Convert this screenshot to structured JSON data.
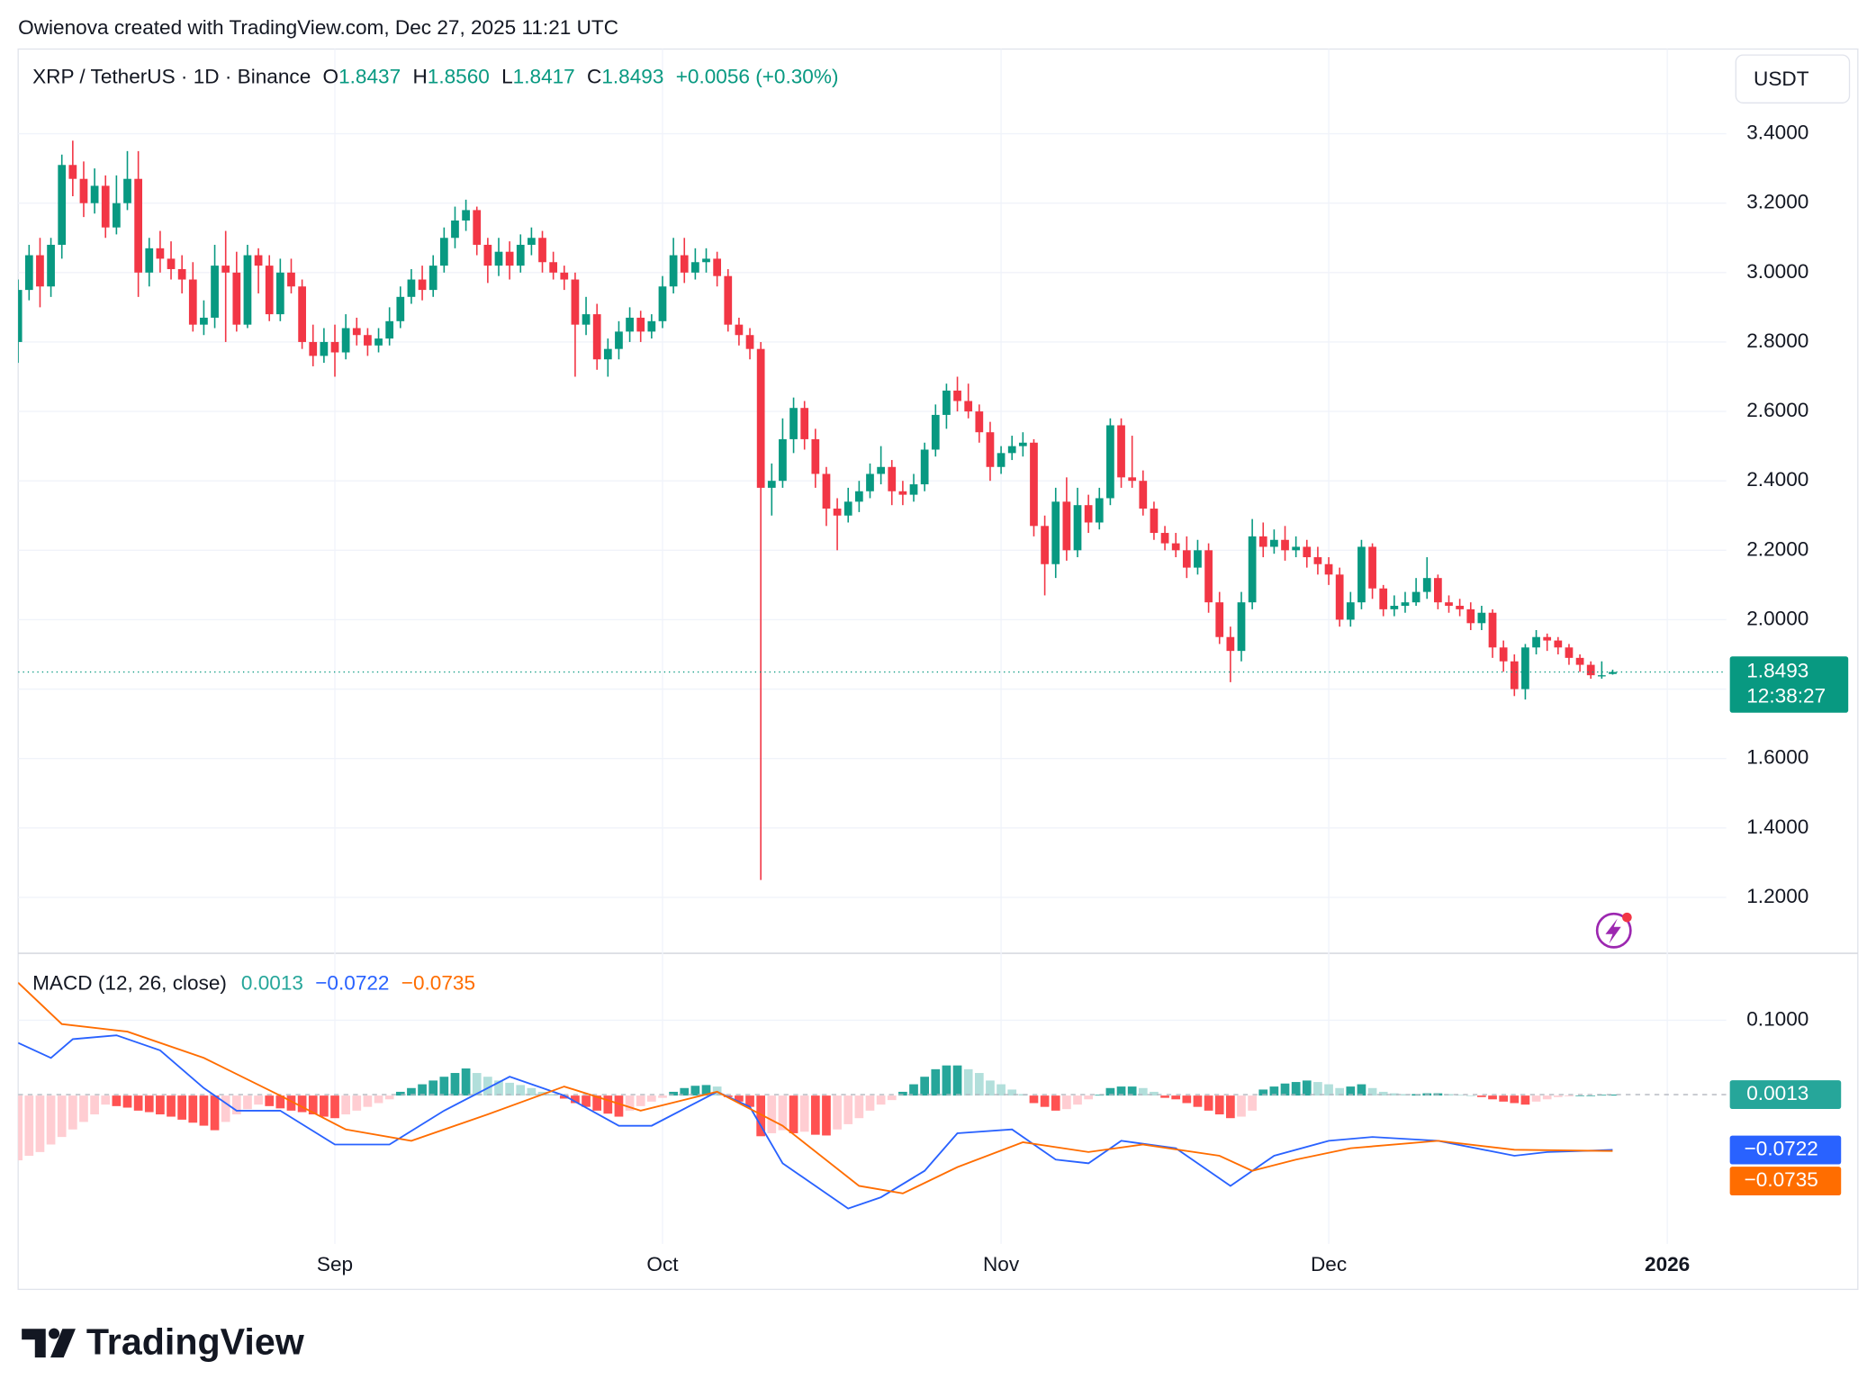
{
  "attribution": "Owienova created with TradingView.com, Dec 27, 2025 11:21 UTC",
  "logo": "TradingView",
  "chart_data": [
    {
      "type": "candlestick",
      "title": "XRP / TetherUS · 1D · Binance",
      "header": [
        {
          "label": "O",
          "value": "1.8437"
        },
        {
          "label": "H",
          "value": "1.8560"
        },
        {
          "label": "L",
          "value": "1.8417"
        },
        {
          "label": "C",
          "value": "1.8493"
        }
      ],
      "change": "+0.0056 (+0.30%)",
      "currency": "USDT",
      "colors": {
        "up": "#089981",
        "down": "#f23645"
      },
      "last_price": 1.8493,
      "countdown": "12:38:27",
      "grid": true,
      "xlim": [
        0,
        156.4
      ],
      "xticks": [
        {
          "value": 29,
          "label": "Sep"
        },
        {
          "value": 59,
          "label": "Oct"
        },
        {
          "value": 90,
          "label": "Nov"
        },
        {
          "value": 120,
          "label": "Dec"
        },
        {
          "value": 151,
          "label": "2026"
        }
      ],
      "ylim": [
        1.039,
        3.644
      ],
      "yticks": [
        {
          "value": 1.2,
          "label": "1.2000"
        },
        {
          "value": 1.4,
          "label": "1.4000"
        },
        {
          "value": 1.6,
          "label": "1.6000"
        },
        {
          "value": 1.8,
          "label": "1.8000"
        },
        {
          "value": 2.0,
          "label": "2.0000"
        },
        {
          "value": 2.2,
          "label": "2.2000"
        },
        {
          "value": 2.4,
          "label": "2.4000"
        },
        {
          "value": 2.6,
          "label": "2.6000"
        },
        {
          "value": 2.8,
          "label": "2.8000"
        },
        {
          "value": 3.0,
          "label": "3.0000"
        },
        {
          "value": 3.2,
          "label": "3.2000"
        },
        {
          "value": 3.4,
          "label": "3.4000"
        }
      ],
      "ohlc": [
        [
          2.8,
          2.98,
          2.74,
          2.95
        ],
        [
          2.95,
          3.08,
          2.92,
          3.05
        ],
        [
          3.05,
          3.1,
          2.9,
          2.96
        ],
        [
          2.96,
          3.1,
          2.93,
          3.08
        ],
        [
          3.08,
          3.34,
          3.04,
          3.31
        ],
        [
          3.31,
          3.38,
          3.22,
          3.27
        ],
        [
          3.27,
          3.32,
          3.16,
          3.2
        ],
        [
          3.2,
          3.3,
          3.17,
          3.25
        ],
        [
          3.25,
          3.28,
          3.1,
          3.13
        ],
        [
          3.13,
          3.28,
          3.11,
          3.2
        ],
        [
          3.2,
          3.35,
          3.18,
          3.27
        ],
        [
          3.27,
          3.35,
          2.93,
          3.0
        ],
        [
          3.0,
          3.1,
          2.96,
          3.07
        ],
        [
          3.07,
          3.12,
          3.0,
          3.04
        ],
        [
          3.04,
          3.09,
          2.98,
          3.01
        ],
        [
          3.01,
          3.05,
          2.94,
          2.98
        ],
        [
          2.98,
          3.03,
          2.83,
          2.85
        ],
        [
          2.85,
          2.92,
          2.82,
          2.87
        ],
        [
          2.87,
          3.08,
          2.84,
          3.02
        ],
        [
          3.02,
          3.12,
          2.8,
          3.0
        ],
        [
          3.0,
          3.06,
          2.83,
          2.85
        ],
        [
          2.85,
          3.08,
          2.84,
          3.05
        ],
        [
          3.05,
          3.07,
          2.94,
          3.02
        ],
        [
          3.02,
          3.05,
          2.86,
          2.88
        ],
        [
          2.88,
          3.04,
          2.86,
          3.0
        ],
        [
          3.0,
          3.04,
          2.94,
          2.96
        ],
        [
          2.96,
          2.98,
          2.78,
          2.8
        ],
        [
          2.8,
          2.85,
          2.73,
          2.76
        ],
        [
          2.76,
          2.84,
          2.74,
          2.8
        ],
        [
          2.8,
          2.85,
          2.7,
          2.77
        ],
        [
          2.77,
          2.88,
          2.75,
          2.84
        ],
        [
          2.84,
          2.87,
          2.79,
          2.82
        ],
        [
          2.82,
          2.84,
          2.76,
          2.79
        ],
        [
          2.79,
          2.84,
          2.77,
          2.81
        ],
        [
          2.81,
          2.9,
          2.79,
          2.86
        ],
        [
          2.86,
          2.96,
          2.84,
          2.93
        ],
        [
          2.93,
          3.01,
          2.91,
          2.98
        ],
        [
          2.98,
          3.02,
          2.92,
          2.95
        ],
        [
          2.95,
          3.05,
          2.93,
          3.02
        ],
        [
          3.02,
          3.13,
          3.0,
          3.1
        ],
        [
          3.1,
          3.19,
          3.07,
          3.15
        ],
        [
          3.15,
          3.21,
          3.12,
          3.18
        ],
        [
          3.18,
          3.19,
          3.05,
          3.08
        ],
        [
          3.08,
          3.1,
          2.97,
          3.02
        ],
        [
          3.02,
          3.1,
          2.99,
          3.06
        ],
        [
          3.06,
          3.09,
          2.98,
          3.02
        ],
        [
          3.02,
          3.11,
          3.0,
          3.08
        ],
        [
          3.08,
          3.13,
          3.05,
          3.1
        ],
        [
          3.1,
          3.12,
          3.0,
          3.03
        ],
        [
          3.03,
          3.06,
          2.98,
          3.0
        ],
        [
          3.0,
          3.02,
          2.95,
          2.98
        ],
        [
          2.98,
          3.0,
          2.7,
          2.85
        ],
        [
          2.85,
          2.93,
          2.82,
          2.88
        ],
        [
          2.88,
          2.91,
          2.72,
          2.75
        ],
        [
          2.75,
          2.81,
          2.7,
          2.78
        ],
        [
          2.78,
          2.86,
          2.75,
          2.83
        ],
        [
          2.83,
          2.9,
          2.8,
          2.87
        ],
        [
          2.87,
          2.89,
          2.8,
          2.83
        ],
        [
          2.83,
          2.88,
          2.81,
          2.86
        ],
        [
          2.86,
          2.99,
          2.84,
          2.96
        ],
        [
          2.96,
          3.1,
          2.94,
          3.05
        ],
        [
          3.05,
          3.1,
          2.97,
          3.0
        ],
        [
          3.0,
          3.07,
          2.98,
          3.03
        ],
        [
          3.03,
          3.07,
          3.0,
          3.04
        ],
        [
          3.04,
          3.06,
          2.96,
          2.99
        ],
        [
          2.99,
          3.01,
          2.83,
          2.85
        ],
        [
          2.85,
          2.87,
          2.79,
          2.82
        ],
        [
          2.82,
          2.84,
          2.75,
          2.78
        ],
        [
          2.78,
          2.8,
          1.25,
          2.38
        ],
        [
          2.38,
          2.45,
          2.3,
          2.4
        ],
        [
          2.4,
          2.58,
          2.38,
          2.52
        ],
        [
          2.52,
          2.64,
          2.48,
          2.61
        ],
        [
          2.61,
          2.63,
          2.49,
          2.52
        ],
        [
          2.52,
          2.55,
          2.38,
          2.42
        ],
        [
          2.42,
          2.44,
          2.27,
          2.32
        ],
        [
          2.32,
          2.35,
          2.2,
          2.3
        ],
        [
          2.3,
          2.38,
          2.28,
          2.34
        ],
        [
          2.34,
          2.4,
          2.31,
          2.37
        ],
        [
          2.37,
          2.45,
          2.35,
          2.42
        ],
        [
          2.42,
          2.5,
          2.39,
          2.44
        ],
        [
          2.44,
          2.46,
          2.33,
          2.37
        ],
        [
          2.37,
          2.4,
          2.33,
          2.36
        ],
        [
          2.36,
          2.42,
          2.34,
          2.39
        ],
        [
          2.39,
          2.51,
          2.37,
          2.49
        ],
        [
          2.49,
          2.62,
          2.47,
          2.59
        ],
        [
          2.59,
          2.68,
          2.55,
          2.66
        ],
        [
          2.66,
          2.7,
          2.6,
          2.63
        ],
        [
          2.63,
          2.68,
          2.58,
          2.6
        ],
        [
          2.6,
          2.62,
          2.51,
          2.54
        ],
        [
          2.54,
          2.57,
          2.4,
          2.44
        ],
        [
          2.44,
          2.5,
          2.42,
          2.48
        ],
        [
          2.48,
          2.53,
          2.46,
          2.5
        ],
        [
          2.5,
          2.54,
          2.47,
          2.51
        ],
        [
          2.51,
          2.52,
          2.24,
          2.27
        ],
        [
          2.27,
          2.3,
          2.07,
          2.16
        ],
        [
          2.16,
          2.38,
          2.12,
          2.34
        ],
        [
          2.34,
          2.41,
          2.17,
          2.2
        ],
        [
          2.2,
          2.38,
          2.18,
          2.33
        ],
        [
          2.33,
          2.36,
          2.25,
          2.28
        ],
        [
          2.28,
          2.38,
          2.26,
          2.35
        ],
        [
          2.35,
          2.58,
          2.33,
          2.56
        ],
        [
          2.56,
          2.58,
          2.38,
          2.41
        ],
        [
          2.41,
          2.53,
          2.38,
          2.4
        ],
        [
          2.4,
          2.43,
          2.3,
          2.32
        ],
        [
          2.32,
          2.34,
          2.23,
          2.25
        ],
        [
          2.25,
          2.27,
          2.2,
          2.22
        ],
        [
          2.22,
          2.25,
          2.18,
          2.2
        ],
        [
          2.2,
          2.24,
          2.12,
          2.15
        ],
        [
          2.15,
          2.23,
          2.13,
          2.2
        ],
        [
          2.2,
          2.22,
          2.02,
          2.05
        ],
        [
          2.05,
          2.08,
          1.93,
          1.95
        ],
        [
          1.95,
          1.98,
          1.82,
          1.91
        ],
        [
          1.91,
          2.08,
          1.88,
          2.05
        ],
        [
          2.05,
          2.29,
          2.03,
          2.24
        ],
        [
          2.24,
          2.28,
          2.18,
          2.21
        ],
        [
          2.21,
          2.26,
          2.19,
          2.23
        ],
        [
          2.23,
          2.27,
          2.17,
          2.2
        ],
        [
          2.2,
          2.24,
          2.18,
          2.21
        ],
        [
          2.21,
          2.23,
          2.15,
          2.18
        ],
        [
          2.18,
          2.21,
          2.13,
          2.16
        ],
        [
          2.16,
          2.18,
          2.1,
          2.13
        ],
        [
          2.13,
          2.15,
          1.98,
          2.0
        ],
        [
          2.0,
          2.08,
          1.98,
          2.05
        ],
        [
          2.05,
          2.23,
          2.03,
          2.21
        ],
        [
          2.21,
          2.22,
          2.06,
          2.09
        ],
        [
          2.09,
          2.1,
          2.01,
          2.03
        ],
        [
          2.03,
          2.07,
          2.01,
          2.04
        ],
        [
          2.04,
          2.08,
          2.02,
          2.05
        ],
        [
          2.05,
          2.12,
          2.04,
          2.08
        ],
        [
          2.08,
          2.18,
          2.06,
          2.12
        ],
        [
          2.12,
          2.13,
          2.03,
          2.05
        ],
        [
          2.05,
          2.07,
          2.02,
          2.04
        ],
        [
          2.04,
          2.06,
          2.01,
          2.03
        ],
        [
          2.03,
          2.05,
          1.97,
          1.99
        ],
        [
          1.99,
          2.04,
          1.97,
          2.02
        ],
        [
          2.02,
          2.03,
          1.89,
          1.92
        ],
        [
          1.92,
          1.94,
          1.85,
          1.88
        ],
        [
          1.88,
          1.9,
          1.78,
          1.8
        ],
        [
          1.8,
          1.93,
          1.77,
          1.92
        ],
        [
          1.92,
          1.97,
          1.9,
          1.95
        ],
        [
          1.95,
          1.96,
          1.91,
          1.94
        ],
        [
          1.94,
          1.95,
          1.9,
          1.92
        ],
        [
          1.92,
          1.93,
          1.87,
          1.89
        ],
        [
          1.89,
          1.9,
          1.85,
          1.87
        ],
        [
          1.87,
          1.88,
          1.83,
          1.84
        ],
        [
          1.84,
          1.88,
          1.83,
          1.84
        ],
        [
          1.8437,
          1.856,
          1.8417,
          1.8493
        ]
      ]
    },
    {
      "type": "macd",
      "title": "MACD (12, 26, close)",
      "ylim": [
        -0.197,
        0.189
      ],
      "yticks": [
        {
          "value": 0.1,
          "label": "0.1000"
        }
      ],
      "histogram": {
        "colors": {
          "up_rising": "#26a69a",
          "up_falling": "#b2dfdb",
          "down_falling": "#ff5252",
          "down_rising": "#ffcdd2"
        },
        "values": [
          -0.086,
          -0.08,
          -0.075,
          -0.065,
          -0.055,
          -0.045,
          -0.035,
          -0.025,
          -0.012,
          -0.014,
          -0.016,
          -0.02,
          -0.022,
          -0.025,
          -0.028,
          -0.032,
          -0.036,
          -0.04,
          -0.046,
          -0.035,
          -0.025,
          -0.018,
          -0.012,
          -0.014,
          -0.017,
          -0.02,
          -0.022,
          -0.025,
          -0.028,
          -0.03,
          -0.025,
          -0.02,
          -0.015,
          -0.01,
          -0.005,
          0.005,
          0.01,
          0.015,
          0.02,
          0.025,
          0.03,
          0.036,
          0.03,
          0.025,
          0.02,
          0.017,
          0.014,
          0.01,
          0.005,
          0.002,
          -0.004,
          -0.01,
          -0.015,
          -0.02,
          -0.024,
          -0.028,
          -0.02,
          -0.014,
          -0.008,
          -0.003,
          0.005,
          0.01,
          0.013,
          0.014,
          0.012,
          -0.002,
          -0.008,
          -0.015,
          -0.054,
          -0.05,
          -0.046,
          -0.05,
          -0.048,
          -0.052,
          -0.053,
          -0.045,
          -0.038,
          -0.03,
          -0.02,
          -0.012,
          -0.006,
          0.005,
          0.015,
          0.025,
          0.035,
          0.04,
          0.04,
          0.035,
          0.03,
          0.02,
          0.015,
          0.008,
          0.002,
          -0.01,
          -0.015,
          -0.02,
          -0.018,
          -0.012,
          -0.005,
          0.001,
          0.01,
          0.012,
          0.012,
          0.01,
          0.005,
          -0.003,
          -0.005,
          -0.01,
          -0.015,
          -0.02,
          -0.025,
          -0.03,
          -0.028,
          -0.02,
          0.008,
          0.012,
          0.016,
          0.018,
          0.02,
          0.018,
          0.015,
          0.01,
          0.012,
          0.015,
          0.01,
          0.005,
          0.003,
          0.002,
          0.002,
          0.003,
          0.003,
          0.002,
          0.001,
          0.0,
          -0.002,
          -0.005,
          -0.008,
          -0.01,
          -0.012,
          -0.008,
          -0.005,
          -0.002,
          -0.001,
          0.0,
          0.0,
          0.001,
          0.0013
        ]
      },
      "macd": {
        "color": "#2962ff",
        "last_label": "−0.0722",
        "x": [
          0,
          3,
          5,
          9,
          13,
          17,
          20,
          24,
          29,
          34,
          39,
          45,
          50,
          55,
          58,
          64,
          67,
          70,
          76,
          79,
          83,
          86,
          91,
          95,
          98,
          101,
          106,
          111,
          115,
          120,
          124,
          130,
          137,
          140,
          146
        ],
        "values": [
          0.07,
          0.05,
          0.075,
          0.08,
          0.06,
          0.01,
          -0.02,
          -0.02,
          -0.065,
          -0.065,
          -0.02,
          0.025,
          0.0,
          -0.04,
          -0.04,
          0.005,
          -0.015,
          -0.09,
          -0.15,
          -0.135,
          -0.1,
          -0.05,
          -0.045,
          -0.085,
          -0.09,
          -0.06,
          -0.07,
          -0.12,
          -0.08,
          -0.06,
          -0.055,
          -0.06,
          -0.08,
          -0.075,
          -0.0722
        ]
      },
      "signal": {
        "color": "#ff6d00",
        "last_label": "−0.0735",
        "x": [
          0,
          4,
          10,
          17,
          24,
          30,
          36,
          43,
          50,
          57,
          64,
          70,
          77,
          81,
          86,
          92,
          98,
          103,
          110,
          113,
          117,
          122,
          130,
          137,
          146
        ],
        "values": [
          0.15,
          0.095,
          0.085,
          0.05,
          0.0,
          -0.045,
          -0.06,
          -0.025,
          0.012,
          -0.02,
          0.005,
          -0.04,
          -0.12,
          -0.13,
          -0.095,
          -0.062,
          -0.075,
          -0.065,
          -0.08,
          -0.1,
          -0.085,
          -0.07,
          -0.06,
          -0.072,
          -0.0735
        ]
      }
    }
  ]
}
